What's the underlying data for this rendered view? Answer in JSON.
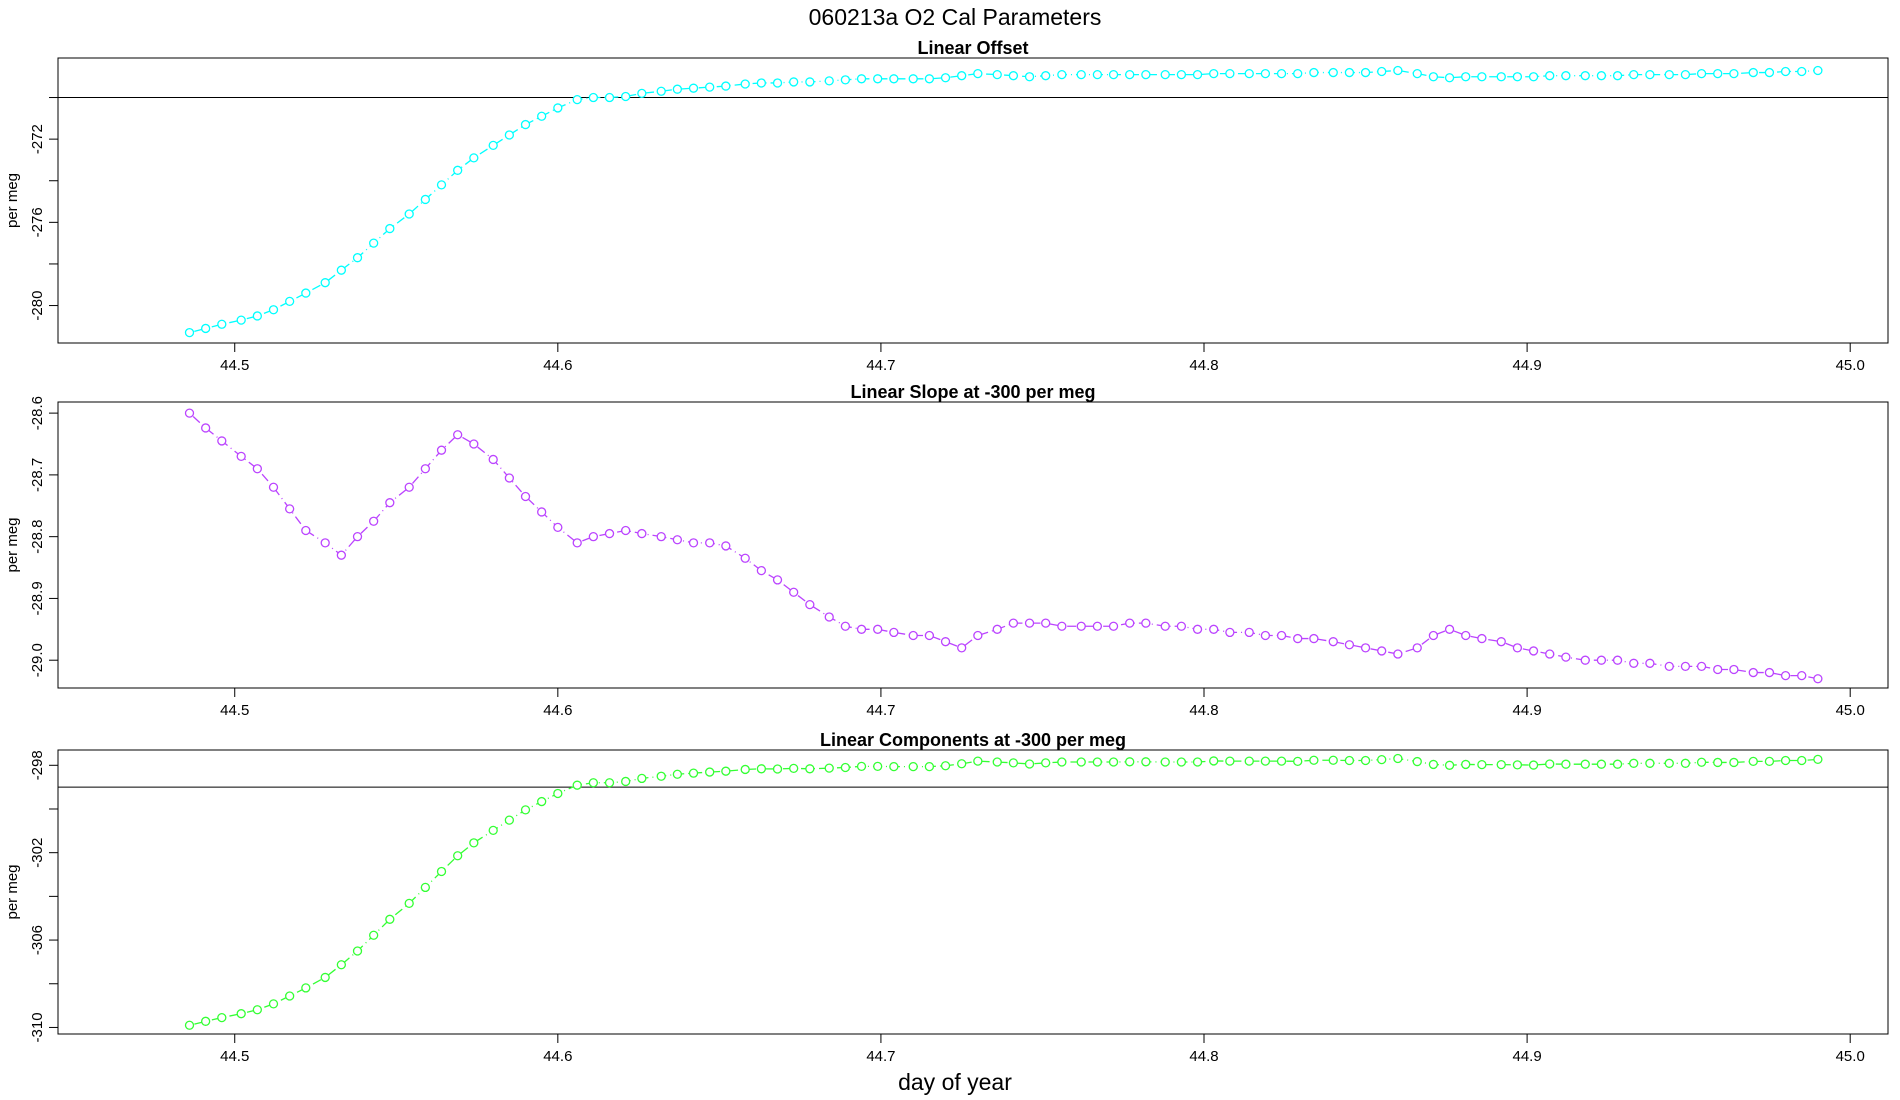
{
  "title": "060213a   O2 Cal Parameters",
  "xlabel": "day of year",
  "chart_data": [
    {
      "type": "line",
      "title": "Linear Offset",
      "ylabel": "per meg",
      "color": "#00ffff",
      "marker": "circle",
      "linestyle": "dashdot",
      "x": [
        44.486,
        44.491,
        44.496,
        44.502,
        44.507,
        44.512,
        44.517,
        44.522,
        44.528,
        44.533,
        44.538,
        44.543,
        44.548,
        44.554,
        44.559,
        44.564,
        44.569,
        44.574,
        44.58,
        44.585,
        44.59,
        44.595,
        44.6,
        44.606,
        44.611,
        44.616,
        44.621,
        44.626,
        44.632,
        44.637,
        44.642,
        44.647,
        44.652,
        44.658,
        44.663,
        44.668,
        44.673,
        44.678,
        44.684,
        44.689,
        44.694,
        44.699,
        44.704,
        44.71,
        44.715,
        44.72,
        44.725,
        44.73,
        44.736,
        44.741,
        44.746,
        44.751,
        44.756,
        44.762,
        44.767,
        44.772,
        44.777,
        44.782,
        44.788,
        44.793,
        44.798,
        44.803,
        44.808,
        44.814,
        44.819,
        44.824,
        44.829,
        44.834,
        44.84,
        44.845,
        44.85,
        44.855,
        44.86,
        44.866,
        44.871,
        44.876,
        44.881,
        44.886,
        44.892,
        44.897,
        44.902,
        44.907,
        44.912,
        44.918,
        44.923,
        44.928,
        44.933,
        44.938,
        44.944,
        44.949,
        44.954,
        44.959,
        44.964,
        44.97,
        44.975,
        44.98,
        44.985,
        44.99
      ],
      "values": [
        -281.3,
        -281.1,
        -280.9,
        -280.7,
        -280.5,
        -280.2,
        -279.8,
        -279.4,
        -278.9,
        -278.3,
        -277.7,
        -277.0,
        -276.3,
        -275.6,
        -274.9,
        -274.2,
        -273.5,
        -272.9,
        -272.3,
        -271.8,
        -271.3,
        -270.9,
        -270.5,
        -270.1,
        -270.0,
        -270.0,
        -269.95,
        -269.8,
        -269.7,
        -269.6,
        -269.55,
        -269.5,
        -269.45,
        -269.35,
        -269.3,
        -269.3,
        -269.25,
        -269.25,
        -269.2,
        -269.15,
        -269.1,
        -269.1,
        -269.1,
        -269.1,
        -269.1,
        -269.05,
        -268.95,
        -268.85,
        -268.9,
        -268.95,
        -269.0,
        -268.95,
        -268.9,
        -268.9,
        -268.9,
        -268.9,
        -268.9,
        -268.9,
        -268.9,
        -268.9,
        -268.9,
        -268.85,
        -268.85,
        -268.85,
        -268.85,
        -268.85,
        -268.85,
        -268.8,
        -268.8,
        -268.8,
        -268.8,
        -268.75,
        -268.7,
        -268.85,
        -269.0,
        -269.05,
        -269.0,
        -269.0,
        -269.0,
        -269.0,
        -269.0,
        -268.95,
        -268.95,
        -268.95,
        -268.95,
        -268.95,
        -268.9,
        -268.9,
        -268.9,
        -268.9,
        -268.85,
        -268.85,
        -268.85,
        -268.8,
        -268.8,
        -268.75,
        -268.75,
        -268.7
      ],
      "hline": -270,
      "xlim": [
        44.4453,
        45.0117
      ],
      "ylim": [
        -281.8,
        -268.1
      ],
      "xticks": [
        44.5,
        44.6,
        44.7,
        44.8,
        44.9,
        {
          "value": 45.0,
          "label": "45.0"
        }
      ],
      "yticks": [
        -272,
        -276,
        -280
      ],
      "minor_yticks": [
        -270,
        -274,
        -278
      ]
    },
    {
      "type": "line",
      "title": "Linear Slope at -300 per meg",
      "ylabel": "per meg",
      "color": "#bb44ff",
      "marker": "circle",
      "linestyle": "dashdot",
      "x": [
        44.486,
        44.491,
        44.496,
        44.502,
        44.507,
        44.512,
        44.517,
        44.522,
        44.528,
        44.533,
        44.538,
        44.543,
        44.548,
        44.554,
        44.559,
        44.564,
        44.569,
        44.574,
        44.58,
        44.585,
        44.59,
        44.595,
        44.6,
        44.606,
        44.611,
        44.616,
        44.621,
        44.626,
        44.632,
        44.637,
        44.642,
        44.647,
        44.652,
        44.658,
        44.663,
        44.668,
        44.673,
        44.678,
        44.684,
        44.689,
        44.694,
        44.699,
        44.704,
        44.71,
        44.715,
        44.72,
        44.725,
        44.73,
        44.736,
        44.741,
        44.746,
        44.751,
        44.756,
        44.762,
        44.767,
        44.772,
        44.777,
        44.782,
        44.788,
        44.793,
        44.798,
        44.803,
        44.808,
        44.814,
        44.819,
        44.824,
        44.829,
        44.834,
        44.84,
        44.845,
        44.85,
        44.855,
        44.86,
        44.866,
        44.871,
        44.876,
        44.881,
        44.886,
        44.892,
        44.897,
        44.902,
        44.907,
        44.912,
        44.918,
        44.923,
        44.928,
        44.933,
        44.938,
        44.944,
        44.949,
        44.954,
        44.959,
        44.964,
        44.97,
        44.975,
        44.98,
        44.985,
        44.99
      ],
      "values": [
        -28.6,
        -28.624,
        -28.645,
        -28.67,
        -28.69,
        -28.72,
        -28.755,
        -28.79,
        -28.81,
        -28.83,
        -28.8,
        -28.775,
        -28.745,
        -28.72,
        -28.69,
        -28.66,
        -28.635,
        -28.65,
        -28.675,
        -28.705,
        -28.735,
        -28.76,
        -28.785,
        -28.81,
        -28.8,
        -28.795,
        -28.79,
        -28.795,
        -28.8,
        -28.805,
        -28.81,
        -28.81,
        -28.815,
        -28.835,
        -28.855,
        -28.87,
        -28.89,
        -28.91,
        -28.93,
        -28.945,
        -28.95,
        -28.95,
        -28.955,
        -28.96,
        -28.96,
        -28.97,
        -28.98,
        -28.96,
        -28.95,
        -28.94,
        -28.94,
        -28.94,
        -28.945,
        -28.945,
        -28.945,
        -28.945,
        -28.94,
        -28.94,
        -28.945,
        -28.945,
        -28.95,
        -28.95,
        -28.955,
        -28.955,
        -28.96,
        -28.96,
        -28.965,
        -28.965,
        -28.97,
        -28.975,
        -28.98,
        -28.985,
        -28.99,
        -28.98,
        -28.96,
        -28.95,
        -28.96,
        -28.965,
        -28.97,
        -28.98,
        -28.985,
        -28.99,
        -28.995,
        -29.0,
        -29.0,
        -29.0,
        -29.005,
        -29.005,
        -29.01,
        -29.01,
        -29.01,
        -29.015,
        -29.015,
        -29.02,
        -29.02,
        -29.025,
        -29.025,
        -29.03
      ],
      "xlim": [
        44.4453,
        45.0117
      ],
      "ylim": [
        -29.045,
        -28.582
      ],
      "xticks": [
        44.5,
        44.6,
        44.7,
        44.8,
        44.9,
        {
          "value": 45.0,
          "label": "45.0"
        }
      ],
      "yticks": [
        -28.6,
        -28.7,
        -28.8,
        -28.9,
        {
          "value": -29.0,
          "label": "-29.0"
        }
      ]
    },
    {
      "type": "line",
      "title": "Linear Components at -300 per meg",
      "ylabel": "per meg",
      "color": "#33ff33",
      "marker": "circle",
      "linestyle": "dashdot",
      "x": [
        44.486,
        44.491,
        44.496,
        44.502,
        44.507,
        44.512,
        44.517,
        44.522,
        44.528,
        44.533,
        44.538,
        44.543,
        44.548,
        44.554,
        44.559,
        44.564,
        44.569,
        44.574,
        44.58,
        44.585,
        44.59,
        44.595,
        44.6,
        44.606,
        44.611,
        44.616,
        44.621,
        44.626,
        44.632,
        44.637,
        44.642,
        44.647,
        44.652,
        44.658,
        44.663,
        44.668,
        44.673,
        44.678,
        44.684,
        44.689,
        44.694,
        44.699,
        44.704,
        44.71,
        44.715,
        44.72,
        44.725,
        44.73,
        44.736,
        44.741,
        44.746,
        44.751,
        44.756,
        44.762,
        44.767,
        44.772,
        44.777,
        44.782,
        44.788,
        44.793,
        44.798,
        44.803,
        44.808,
        44.814,
        44.819,
        44.824,
        44.829,
        44.834,
        44.84,
        44.845,
        44.85,
        44.855,
        44.86,
        44.866,
        44.871,
        44.876,
        44.881,
        44.886,
        44.892,
        44.897,
        44.902,
        44.907,
        44.912,
        44.918,
        44.923,
        44.928,
        44.933,
        44.938,
        44.944,
        44.949,
        44.954,
        44.959,
        44.964,
        44.97,
        44.975,
        44.98,
        44.985,
        44.99
      ],
      "values": [
        -309.9,
        -309.72,
        -309.55,
        -309.37,
        -309.19,
        -308.92,
        -308.56,
        -308.19,
        -307.71,
        -307.13,
        -306.5,
        -305.78,
        -305.05,
        -304.32,
        -303.59,
        -302.86,
        -302.14,
        -301.55,
        -300.98,
        -300.51,
        -300.04,
        -299.66,
        -299.29,
        -298.91,
        -298.8,
        -298.8,
        -298.74,
        -298.6,
        -298.5,
        -298.41,
        -298.36,
        -298.31,
        -298.27,
        -298.19,
        -298.16,
        -298.17,
        -298.14,
        -298.16,
        -298.13,
        -298.1,
        -298.05,
        -298.05,
        -298.06,
        -298.06,
        -298.06,
        -298.02,
        -297.93,
        -297.81,
        -297.85,
        -297.89,
        -297.94,
        -297.89,
        -297.85,
        -297.85,
        -297.85,
        -297.85,
        -297.84,
        -297.84,
        -297.85,
        -297.85,
        -297.85,
        -297.8,
        -297.81,
        -297.81,
        -297.81,
        -297.81,
        -297.82,
        -297.77,
        -297.77,
        -297.78,
        -297.78,
        -297.74,
        -297.69,
        -297.83,
        -297.96,
        -298.0,
        -297.96,
        -297.97,
        -297.97,
        -297.98,
        -297.99,
        -297.94,
        -297.95,
        -297.95,
        -297.95,
        -297.95,
        -297.91,
        -297.91,
        -297.91,
        -297.91,
        -297.86,
        -297.87,
        -297.87,
        -297.82,
        -297.82,
        -297.78,
        -297.78,
        -297.73
      ],
      "hline": -299,
      "xlim": [
        44.4453,
        45.0117
      ],
      "ylim": [
        -310.3,
        -297.3
      ],
      "xticks": [
        44.5,
        44.6,
        44.7,
        44.8,
        44.9,
        {
          "value": 45.0,
          "label": "45.0"
        }
      ],
      "yticks": [
        -298,
        -302,
        -306,
        -310
      ],
      "minor_yticks": [
        -300,
        -304,
        -308
      ]
    }
  ]
}
